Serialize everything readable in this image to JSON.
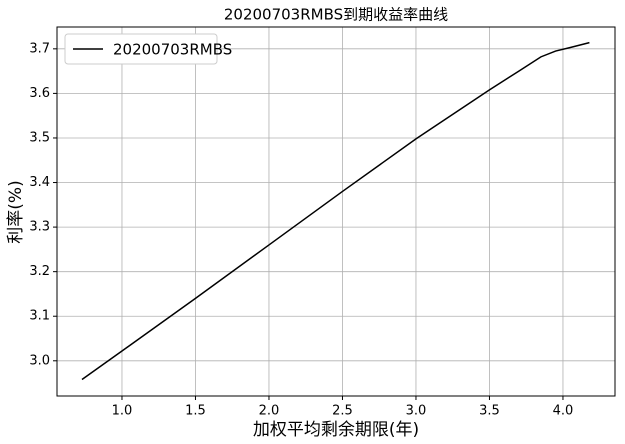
{
  "chart_data": {
    "type": "line",
    "title": "20200703RMBS到期收益率曲线",
    "x_label": "加权平均剩余期限(年)",
    "y_label": "利率(%)",
    "x": [
      0.728,
      1.0,
      1.5,
      2.0,
      2.5,
      3.0,
      3.5,
      3.7,
      3.85,
      3.95,
      4.05,
      4.18
    ],
    "series": [
      {
        "name": "20200703RMBS",
        "color": "#000000",
        "values": [
          2.958,
          3.022,
          3.14,
          3.26,
          3.38,
          3.498,
          3.608,
          3.65,
          3.682,
          3.695,
          3.703,
          3.714
        ]
      }
    ],
    "xlim": [
      0.558,
      4.354
    ],
    "ylim": [
      2.921,
      3.749
    ],
    "xticks": [
      {
        "value": 1,
        "label": "1.0"
      },
      1.5,
      {
        "value": 2,
        "label": "2.0"
      },
      2.5,
      {
        "value": 3,
        "label": "3.0"
      },
      3.5,
      {
        "value": 4,
        "label": "4.0"
      }
    ],
    "yticks": [
      {
        "value": 3,
        "label": "3.0"
      },
      3.1,
      3.2,
      3.3,
      3.4,
      3.5,
      3.6,
      3.7
    ],
    "grid": true,
    "legend": "upper-left"
  }
}
